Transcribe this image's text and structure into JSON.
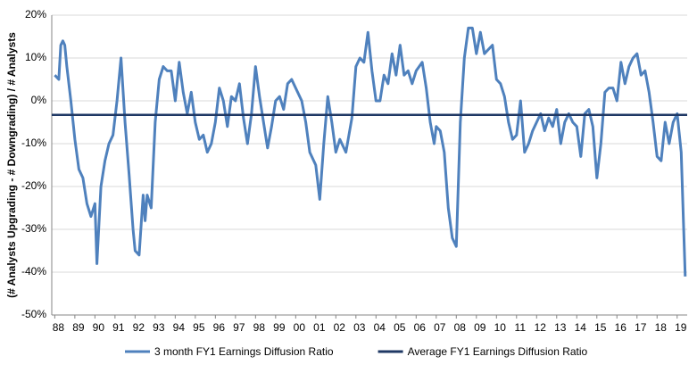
{
  "chart_data": {
    "type": "line",
    "y_label": "(# Analysts Upgrading - # Downgrading) / # Analysts",
    "series": [
      {
        "name": "3 month FY1 Earnings Diffusion Ratio",
        "color": "#4f81bd",
        "x": [
          1988.0,
          1988.2,
          1988.3,
          1988.4,
          1988.5,
          1988.6,
          1988.8,
          1989.0,
          1989.2,
          1989.4,
          1989.6,
          1989.8,
          1990.0,
          1990.1,
          1990.3,
          1990.5,
          1990.7,
          1990.9,
          1991.1,
          1991.3,
          1991.5,
          1991.7,
          1991.9,
          1992.0,
          1992.2,
          1992.4,
          1992.5,
          1992.6,
          1992.8,
          1993.0,
          1993.2,
          1993.4,
          1993.6,
          1993.8,
          1994.0,
          1994.2,
          1994.4,
          1994.6,
          1994.8,
          1995.0,
          1995.2,
          1995.4,
          1995.6,
          1995.8,
          1996.0,
          1996.2,
          1996.4,
          1996.6,
          1996.8,
          1997.0,
          1997.2,
          1997.4,
          1997.6,
          1997.8,
          1998.0,
          1998.2,
          1998.4,
          1998.6,
          1998.8,
          1999.0,
          1999.2,
          1999.4,
          1999.6,
          1999.8,
          2000.0,
          2000.3,
          2000.5,
          2000.7,
          2001.0,
          2001.2,
          2001.4,
          2001.6,
          2001.8,
          2002.0,
          2002.2,
          2002.5,
          2002.8,
          2003.0,
          2003.2,
          2003.4,
          2003.6,
          2003.8,
          2004.0,
          2004.2,
          2004.4,
          2004.6,
          2004.8,
          2005.0,
          2005.2,
          2005.4,
          2005.6,
          2005.8,
          2006.0,
          2006.3,
          2006.5,
          2006.7,
          2006.9,
          2007.0,
          2007.2,
          2007.4,
          2007.6,
          2007.8,
          2008.0,
          2008.2,
          2008.4,
          2008.6,
          2008.8,
          2009.0,
          2009.2,
          2009.4,
          2009.6,
          2009.8,
          2010.0,
          2010.2,
          2010.4,
          2010.6,
          2010.8,
          2011.0,
          2011.2,
          2011.4,
          2011.6,
          2011.8,
          2012.0,
          2012.2,
          2012.4,
          2012.6,
          2012.8,
          2013.0,
          2013.2,
          2013.4,
          2013.6,
          2013.8,
          2014.0,
          2014.2,
          2014.4,
          2014.6,
          2014.8,
          2015.0,
          2015.2,
          2015.4,
          2015.6,
          2015.8,
          2016.0,
          2016.2,
          2016.4,
          2016.6,
          2016.8,
          2017.0,
          2017.2,
          2017.4,
          2017.6,
          2017.8,
          2018.0,
          2018.2,
          2018.4,
          2018.6,
          2018.8,
          2019.0,
          2019.2,
          2019.4
        ],
        "values": [
          6,
          5,
          13,
          14,
          13,
          8,
          0,
          -9,
          -16,
          -18,
          -24,
          -27,
          -24,
          -38,
          -20,
          -14,
          -10,
          -8,
          0,
          10,
          -5,
          -17,
          -30,
          -35,
          -36,
          -22,
          -28,
          -22,
          -25,
          -5,
          5,
          8,
          7,
          7,
          0,
          9,
          2,
          -3,
          2,
          -5,
          -9,
          -8,
          -12,
          -10,
          -5,
          3,
          0,
          -6,
          1,
          0,
          4,
          -4,
          -10,
          -3,
          8,
          1,
          -5,
          -11,
          -6,
          0,
          1,
          -2,
          4,
          5,
          3,
          0,
          -5,
          -12,
          -15,
          -23,
          -10,
          1,
          -5,
          -12,
          -9,
          -12,
          -4,
          8,
          10,
          9,
          16,
          7,
          0,
          0,
          6,
          4,
          11,
          6,
          13,
          6,
          7,
          4,
          7,
          9,
          3,
          -5,
          -10,
          -6,
          -7,
          -12,
          -25,
          -32,
          -34,
          -5,
          10,
          17,
          17,
          11,
          16,
          11,
          12,
          13,
          5,
          4,
          1,
          -5,
          -9,
          -8,
          0,
          -12,
          -10,
          -7,
          -5,
          -3,
          -7,
          -4,
          -6,
          -2,
          -10,
          -5,
          -3,
          -5,
          -6,
          -13,
          -3,
          -2,
          -6,
          -18,
          -10,
          2,
          3,
          3,
          0,
          9,
          4,
          8,
          10,
          11,
          6,
          7,
          2,
          -5,
          -13,
          -14,
          -5,
          -10,
          -5,
          -3,
          -12,
          -41
        ]
      },
      {
        "name": "Average FY1 Earnings Diffusion Ratio",
        "color": "#1f3864",
        "x": [
          1987.85,
          2019.5
        ],
        "values": [
          -3.3,
          -3.3
        ]
      }
    ],
    "xlim": [
      1987.85,
      2019.5
    ],
    "xticks": [
      {
        "value": 1988,
        "label": "88"
      },
      {
        "value": 1989,
        "label": "89"
      },
      {
        "value": 1990,
        "label": "90"
      },
      {
        "value": 1991,
        "label": "91"
      },
      {
        "value": 1992,
        "label": "92"
      },
      {
        "value": 1993,
        "label": "93"
      },
      {
        "value": 1994,
        "label": "94"
      },
      {
        "value": 1995,
        "label": "95"
      },
      {
        "value": 1996,
        "label": "96"
      },
      {
        "value": 1997,
        "label": "97"
      },
      {
        "value": 1998,
        "label": "98"
      },
      {
        "value": 1999,
        "label": "99"
      },
      {
        "value": 2000,
        "label": "00"
      },
      {
        "value": 2001,
        "label": "01"
      },
      {
        "value": 2002,
        "label": "02"
      },
      {
        "value": 2003,
        "label": "03"
      },
      {
        "value": 2004,
        "label": "04"
      },
      {
        "value": 2005,
        "label": "05"
      },
      {
        "value": 2006,
        "label": "06"
      },
      {
        "value": 2007,
        "label": "07"
      },
      {
        "value": 2008,
        "label": "08"
      },
      {
        "value": 2009,
        "label": "09"
      },
      {
        "value": 2010,
        "label": "10"
      },
      {
        "value": 2011,
        "label": "11"
      },
      {
        "value": 2012,
        "label": "12"
      },
      {
        "value": 2013,
        "label": "13"
      },
      {
        "value": 2014,
        "label": "14"
      },
      {
        "value": 2015,
        "label": "15"
      },
      {
        "value": 2016,
        "label": "16"
      },
      {
        "value": 2017,
        "label": "17"
      },
      {
        "value": 2018,
        "label": "18"
      },
      {
        "value": 2019,
        "label": "19"
      }
    ],
    "ylim": [
      -50,
      20
    ],
    "yticks": [
      {
        "value": -50,
        "label": "-50%"
      },
      {
        "value": -40,
        "label": "-40%"
      },
      {
        "value": -30,
        "label": "-30%"
      },
      {
        "value": -20,
        "label": "-20%"
      },
      {
        "value": -10,
        "label": "-10%"
      },
      {
        "value": 0,
        "label": "0%"
      },
      {
        "value": 10,
        "label": "10%"
      },
      {
        "value": 20,
        "label": "20%"
      }
    ],
    "grid": true,
    "legend": "bottom"
  }
}
